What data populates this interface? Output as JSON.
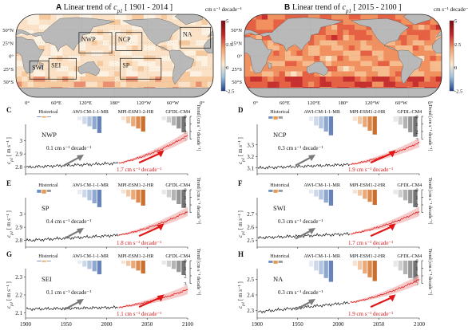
{
  "figure": {
    "maps": [
      {
        "letter": "A",
        "title_pre": "Linear trend of ",
        "title_var": "c",
        "title_sub": "p1",
        "title_post": " [ 1901 - 2014 ]",
        "cbar_unit": "cm s⁻¹ decade⁻¹",
        "cbar_ticks": [
          "5",
          "2.5",
          "0",
          "-2.5"
        ],
        "lat_labels": [
          "50°N",
          "25°N",
          "0°",
          "25°S",
          "50°S"
        ],
        "lon_labels": [
          "0°",
          "60°E",
          "120°E",
          "180°",
          "120°W",
          "60°W",
          "0°"
        ],
        "regions": [
          "NWP",
          "NCP",
          "NA",
          "SWI",
          "SEI",
          "SP"
        ],
        "palette": {
          "warm_deep": "#c42626",
          "warm": "#f2a06c",
          "neutral": "#fde9cf",
          "cool": "#3b63b1",
          "land": "#b9b9b9"
        }
      },
      {
        "letter": "B",
        "title_pre": "Linear trend of ",
        "title_var": "c",
        "title_sub": "p1",
        "title_post": " [ 2015 - 2100 ]",
        "cbar_unit": "cm s⁻¹ decade⁻¹",
        "cbar_ticks": [
          "5",
          "2.5",
          "0",
          "-2.5"
        ],
        "lat_labels": [
          "50°N",
          "25°N",
          "0°",
          "25°S",
          "50°S"
        ],
        "lon_labels": [
          "0°",
          "60°E",
          "120°E",
          "180°",
          "120°W",
          "60°W",
          "0°"
        ]
      }
    ],
    "bar_model_labels": [
      "Historical",
      "AWI-CM-1-1-MR",
      "MPI-ESM1-2-HR",
      "GFDL-CM4"
    ],
    "bar_axis_label": "Trend [cm s⁻¹ decade⁻¹]",
    "bar_axis_ticks": [
      "0",
      "1",
      "2",
      "3"
    ],
    "ylabel_var": "c",
    "ylabel_sub": "p1",
    "ylabel_unit": " [ m s⁻¹ ]",
    "x_ticks": [
      "1900",
      "1950",
      "2000",
      "2050",
      "2100"
    ],
    "bar_colors": {
      "hist": [
        "#6f8fc0",
        "#e59a52",
        "#9a9a9a"
      ],
      "awi": [
        "#e6ebf4",
        "#cdd8ea",
        "#b3c4df",
        "#8fa8cf",
        "#6684b9"
      ],
      "mpi": [
        "#f8e2d1",
        "#f1c7a6",
        "#e9a979",
        "#dd8a4f",
        "#c9702f"
      ],
      "gfdl": [
        "#e8e8e8",
        "#cfcfcf",
        "#b3b3b3",
        "#969696",
        "#747474"
      ]
    }
  },
  "chart_data": [
    {
      "letter": "C",
      "region": "NWP",
      "type": "line",
      "x_range": [
        1900,
        2100
      ],
      "ylim": [
        2.75,
        3.1
      ],
      "yticks": [
        "2.8",
        "2.9",
        "3"
      ],
      "hist_trend": "0.1 cm s⁻¹ decade⁻¹",
      "proj_trend": "1.7 cm s⁻¹ decade⁻¹",
      "hist_x": [
        1901,
        2014
      ],
      "hist_y": [
        2.8,
        2.83
      ],
      "proj_x": [
        2015,
        2100
      ],
      "proj_y": [
        2.83,
        3.04
      ],
      "bar_trends": {
        "hist": [
          0.1,
          0.15,
          0.1
        ],
        "awi": [
          0.5,
          1.0,
          1.3,
          1.7,
          2.2
        ],
        "mpi": [
          0.5,
          0.9,
          1.3,
          1.6,
          2.0
        ],
        "gfdl": [
          0.5,
          0.8,
          1.2,
          1.6,
          2.1
        ]
      }
    },
    {
      "letter": "D",
      "region": "NCP",
      "type": "line",
      "x_range": [
        1900,
        2100
      ],
      "ylim": [
        3.05,
        3.45
      ],
      "yticks": [
        "3.1",
        "3.2",
        "3.3"
      ],
      "hist_trend": "0.3 cm s⁻¹ decade⁻¹",
      "proj_trend": "1.9 cm s⁻¹ decade⁻¹",
      "hist_x": [
        1901,
        2014
      ],
      "hist_y": [
        3.1,
        3.13
      ],
      "proj_x": [
        2015,
        2100
      ],
      "proj_y": [
        3.13,
        3.32
      ],
      "bar_trends": {
        "hist": [
          0.3,
          0.4,
          0.3
        ],
        "awi": [
          0.6,
          1.2,
          1.6,
          2.0,
          2.5
        ],
        "mpi": [
          0.6,
          1.0,
          1.4,
          1.9,
          2.4
        ],
        "gfdl": [
          0.7,
          1.1,
          1.6,
          2.1,
          2.7
        ]
      }
    },
    {
      "letter": "E",
      "region": "SP",
      "type": "line",
      "x_range": [
        1900,
        2100
      ],
      "ylim": [
        2.75,
        3.1
      ],
      "yticks": [
        "2.8",
        "2.9",
        "3"
      ],
      "hist_trend": "0.4 cm s⁻¹ decade⁻¹",
      "proj_trend": "1.8 cm s⁻¹ decade⁻¹",
      "hist_x": [
        1901,
        2014
      ],
      "hist_y": [
        2.8,
        2.84
      ],
      "proj_x": [
        2015,
        2100
      ],
      "proj_y": [
        2.84,
        3.02
      ],
      "bar_trends": {
        "hist": [
          0.4,
          0.5,
          0.3
        ],
        "awi": [
          0.6,
          1.0,
          1.4,
          1.8,
          2.3
        ],
        "mpi": [
          0.5,
          0.9,
          1.3,
          1.7,
          2.1
        ],
        "gfdl": [
          0.6,
          1.0,
          1.4,
          1.9,
          2.4
        ]
      }
    },
    {
      "letter": "F",
      "region": "SWI",
      "type": "line",
      "x_range": [
        1900,
        2100
      ],
      "ylim": [
        2.45,
        2.8
      ],
      "yticks": [
        "2.5",
        "2.6",
        "2.7"
      ],
      "hist_trend": "0.3 cm s⁻¹ decade⁻¹",
      "proj_trend": "1.7 cm s⁻¹ decade⁻¹",
      "hist_x": [
        1901,
        2014
      ],
      "hist_y": [
        2.52,
        2.55
      ],
      "proj_x": [
        2015,
        2100
      ],
      "proj_y": [
        2.55,
        2.72
      ],
      "bar_trends": {
        "hist": [
          0.3,
          0.4,
          0.3
        ],
        "awi": [
          0.5,
          0.9,
          1.3,
          1.7,
          2.1
        ],
        "mpi": [
          0.5,
          0.8,
          1.2,
          1.6,
          2.0
        ],
        "gfdl": [
          0.6,
          1.0,
          1.4,
          1.8,
          2.3
        ]
      }
    },
    {
      "letter": "G",
      "region": "SEI",
      "type": "line",
      "x_range": [
        1900,
        2100
      ],
      "ylim": [
        2.07,
        2.33
      ],
      "yticks": [
        "2.1",
        "2.2",
        "2.3"
      ],
      "hist_trend": "0.1 cm s⁻¹ decade⁻¹",
      "proj_trend": "1.1 cm s⁻¹ decade⁻¹",
      "hist_x": [
        1901,
        2014
      ],
      "hist_y": [
        2.12,
        2.13
      ],
      "proj_x": [
        2015,
        2100
      ],
      "proj_y": [
        2.13,
        2.23
      ],
      "bar_trends": {
        "hist": [
          0.1,
          0.15,
          0.1
        ],
        "awi": [
          0.4,
          0.8,
          1.1,
          1.4,
          1.8
        ],
        "mpi": [
          0.4,
          0.7,
          1.0,
          1.3,
          1.7
        ],
        "gfdl": [
          0.5,
          0.8,
          1.1,
          1.5,
          1.9
        ]
      }
    },
    {
      "letter": "H",
      "region": "NA",
      "type": "line",
      "x_range": [
        1900,
        2100
      ],
      "ylim": [
        2.25,
        2.55
      ],
      "yticks": [
        "2.3",
        "2.4",
        "2.5"
      ],
      "hist_trend": "0.3 cm s⁻¹ decade⁻¹",
      "proj_trend": "1.9 cm s⁻¹ decade⁻¹",
      "hist_x": [
        1901,
        2014
      ],
      "hist_y": [
        2.29,
        2.35
      ],
      "proj_x": [
        2015,
        2100
      ],
      "proj_y": [
        2.35,
        2.5
      ],
      "bar_trends": {
        "hist": [
          0.3,
          0.4,
          0.3
        ],
        "awi": [
          0.8,
          1.3,
          1.8,
          2.3,
          2.8
        ],
        "mpi": [
          0.7,
          1.2,
          1.7,
          2.2,
          2.7
        ],
        "gfdl": [
          0.8,
          1.3,
          1.8,
          2.3,
          2.9
        ]
      }
    }
  ]
}
